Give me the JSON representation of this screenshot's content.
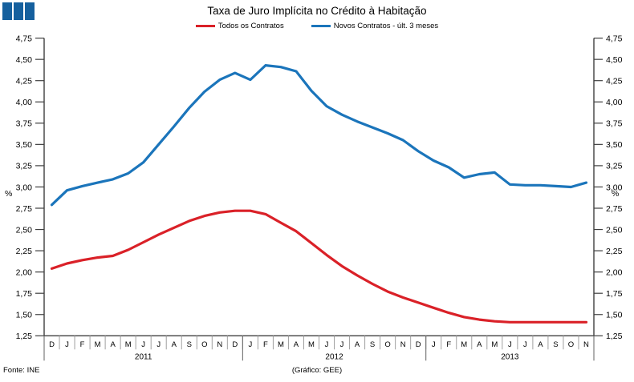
{
  "header": {
    "title": "Taxa de Juro Implícita no Crédito à Habitação",
    "logo_color": "#15609e"
  },
  "y_axis": {
    "unit": "%",
    "tick_labels": [
      "4,75",
      "4,50",
      "4,25",
      "4,00",
      "3,75",
      "3,50",
      "3,25",
      "3,00",
      "2,75",
      "2,50",
      "2,25",
      "2,00",
      "1,75",
      "1,50",
      "1,25"
    ]
  },
  "footer": {
    "source": "Fonte: INE",
    "credit": "(Gráfico: GEE)"
  },
  "chart_data": {
    "type": "line",
    "title": "Taxa de Juro Implícita no Crédito à Habitação",
    "unit": "%",
    "ylim": [
      1.25,
      4.75
    ],
    "y_step": 0.25,
    "grid": false,
    "legend_position": "top",
    "x_months": [
      "D",
      "J",
      "F",
      "M",
      "A",
      "M",
      "J",
      "J",
      "A",
      "S",
      "O",
      "N",
      "D",
      "J",
      "F",
      "M",
      "A",
      "M",
      "J",
      "J",
      "A",
      "S",
      "O",
      "N",
      "D",
      "J",
      "F",
      "M",
      "A",
      "M",
      "J",
      "J",
      "A",
      "S",
      "O",
      "N"
    ],
    "year_groups": [
      {
        "label": "2011",
        "months": 13
      },
      {
        "label": "2012",
        "months": 12
      },
      {
        "label": "2013",
        "months": 11
      }
    ],
    "series": [
      {
        "name": "Todos os Contratos",
        "color": "#da2128",
        "values": [
          2.04,
          2.1,
          2.14,
          2.17,
          2.19,
          2.26,
          2.35,
          2.44,
          2.52,
          2.6,
          2.66,
          2.7,
          2.72,
          2.72,
          2.68,
          2.58,
          2.48,
          2.34,
          2.2,
          2.07,
          1.96,
          1.86,
          1.77,
          1.7,
          1.64,
          1.58,
          1.52,
          1.47,
          1.44,
          1.42,
          1.41,
          1.41,
          1.41,
          1.41,
          1.41,
          1.41
        ]
      },
      {
        "name": "Novos Contratos - últ. 3 meses",
        "color": "#1b75bb",
        "values": [
          2.79,
          2.96,
          3.01,
          3.05,
          3.09,
          3.16,
          3.29,
          3.5,
          3.71,
          3.93,
          4.12,
          4.26,
          4.34,
          4.26,
          4.43,
          4.41,
          4.36,
          4.13,
          3.95,
          3.85,
          3.77,
          3.7,
          3.63,
          3.55,
          3.42,
          3.31,
          3.23,
          3.11,
          3.15,
          3.17,
          3.03,
          3.02,
          3.02,
          3.01,
          3.0,
          3.05
        ]
      }
    ]
  }
}
